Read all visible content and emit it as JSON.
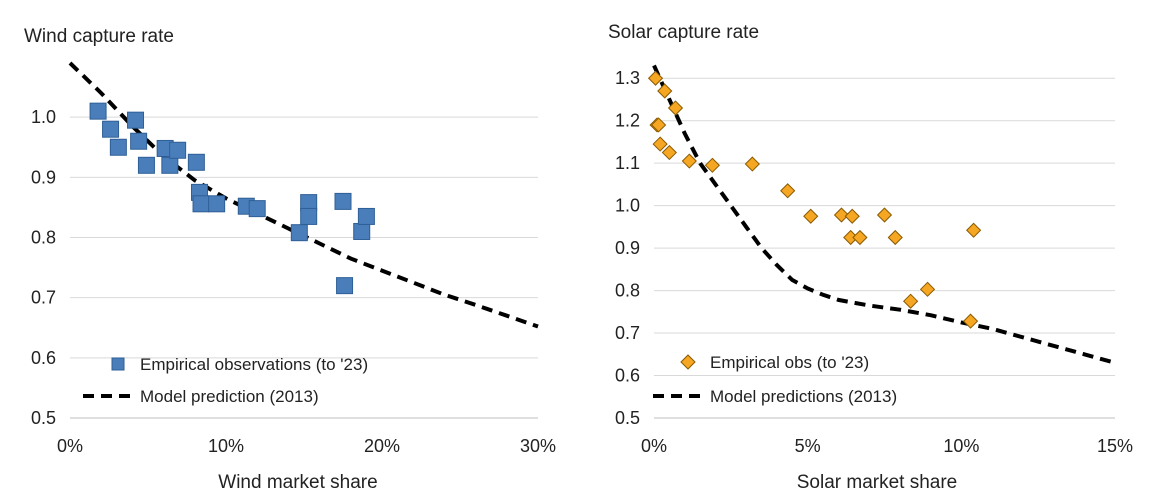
{
  "chart_data": [
    {
      "type": "scatter",
      "title": "Wind capture rate",
      "xlabel": "Wind market share",
      "ylabel": "",
      "xlim": [
        0,
        30
      ],
      "ylim": [
        0.5,
        1.1
      ],
      "x_ticks": [
        "0%",
        "10%",
        "20%",
        "30%"
      ],
      "y_ticks": [
        "0.5",
        "0.6",
        "0.7",
        "0.8",
        "0.9",
        "1.0"
      ],
      "y_tick_values": [
        0.5,
        0.6,
        0.7,
        0.8,
        0.9,
        1.0
      ],
      "x_tick_values": [
        0,
        10,
        20,
        30
      ],
      "grid": true,
      "legend_position": "bottom-left",
      "series": [
        {
          "name": "Empirical observations (to '23)",
          "kind": "markers",
          "marker": "square",
          "color": "#4A7EBB",
          "points": [
            [
              1.8,
              1.01
            ],
            [
              2.6,
              0.98
            ],
            [
              3.1,
              0.95
            ],
            [
              4.2,
              0.995
            ],
            [
              4.4,
              0.96
            ],
            [
              4.9,
              0.92
            ],
            [
              6.1,
              0.948
            ],
            [
              6.4,
              0.92
            ],
            [
              6.9,
              0.945
            ],
            [
              8.1,
              0.925
            ],
            [
              8.3,
              0.875
            ],
            [
              8.4,
              0.856
            ],
            [
              9.4,
              0.856
            ],
            [
              11.3,
              0.852
            ],
            [
              12.0,
              0.848
            ],
            [
              14.7,
              0.808
            ],
            [
              15.3,
              0.858
            ],
            [
              15.3,
              0.835
            ],
            [
              17.5,
              0.86
            ],
            [
              17.6,
              0.72
            ],
            [
              18.7,
              0.81
            ],
            [
              19.0,
              0.835
            ]
          ]
        },
        {
          "name": "Model prediction (2013)",
          "kind": "dashed-line",
          "color": "#000000",
          "points": [
            [
              0,
              1.09
            ],
            [
              2,
              1.04
            ],
            [
              4,
              0.985
            ],
            [
              6,
              0.935
            ],
            [
              8,
              0.895
            ],
            [
              10,
              0.865
            ],
            [
              12,
              0.84
            ],
            [
              14,
              0.815
            ],
            [
              16,
              0.79
            ],
            [
              18,
              0.765
            ],
            [
              20,
              0.745
            ],
            [
              22,
              0.725
            ],
            [
              24,
              0.705
            ],
            [
              26,
              0.688
            ],
            [
              28,
              0.67
            ],
            [
              30,
              0.652
            ]
          ]
        }
      ]
    },
    {
      "type": "scatter",
      "title": "Solar capture rate",
      "xlabel": "Solar market share",
      "ylabel": "",
      "xlim": [
        0,
        15
      ],
      "ylim": [
        0.5,
        1.35
      ],
      "x_ticks": [
        "0%",
        "5%",
        "10%",
        "15%"
      ],
      "y_ticks": [
        "0.5",
        "0.6",
        "0.7",
        "0.8",
        "0.9",
        "1.0",
        "1.1",
        "1.2",
        "1.3"
      ],
      "y_tick_values": [
        0.5,
        0.6,
        0.7,
        0.8,
        0.9,
        1.0,
        1.1,
        1.2,
        1.3
      ],
      "x_tick_values": [
        0,
        5,
        10,
        15
      ],
      "grid": true,
      "legend_position": "bottom-left",
      "series": [
        {
          "name": "Empirical obs (to '23)",
          "kind": "markers",
          "marker": "diamond",
          "color": "#F5A623",
          "points": [
            [
              0.05,
              1.3
            ],
            [
              0.1,
              1.19
            ],
            [
              0.15,
              1.19
            ],
            [
              0.2,
              1.145
            ],
            [
              0.35,
              1.27
            ],
            [
              0.5,
              1.125
            ],
            [
              0.7,
              1.23
            ],
            [
              1.15,
              1.105
            ],
            [
              1.9,
              1.095
            ],
            [
              3.2,
              1.098
            ],
            [
              4.35,
              1.035
            ],
            [
              5.1,
              0.975
            ],
            [
              6.1,
              0.978
            ],
            [
              6.4,
              0.925
            ],
            [
              6.45,
              0.975
            ],
            [
              6.7,
              0.925
            ],
            [
              7.5,
              0.978
            ],
            [
              7.85,
              0.925
            ],
            [
              8.35,
              0.775
            ],
            [
              8.9,
              0.803
            ],
            [
              10.3,
              0.728
            ],
            [
              10.4,
              0.942
            ]
          ]
        },
        {
          "name": "Model predictions (2013)",
          "kind": "dashed-line",
          "color": "#000000",
          "points": [
            [
              0,
              1.33
            ],
            [
              0.5,
              1.25
            ],
            [
              1,
              1.17
            ],
            [
              1.5,
              1.1
            ],
            [
              2,
              1.05
            ],
            [
              2.5,
              1.0
            ],
            [
              3,
              0.95
            ],
            [
              3.5,
              0.9
            ],
            [
              4,
              0.86
            ],
            [
              4.5,
              0.825
            ],
            [
              5,
              0.805
            ],
            [
              5.5,
              0.79
            ],
            [
              6,
              0.778
            ],
            [
              7,
              0.765
            ],
            [
              8,
              0.755
            ],
            [
              9,
              0.742
            ],
            [
              10,
              0.725
            ],
            [
              11,
              0.71
            ],
            [
              12,
              0.69
            ],
            [
              13,
              0.67
            ],
            [
              14,
              0.65
            ],
            [
              15,
              0.63
            ]
          ]
        }
      ]
    }
  ]
}
